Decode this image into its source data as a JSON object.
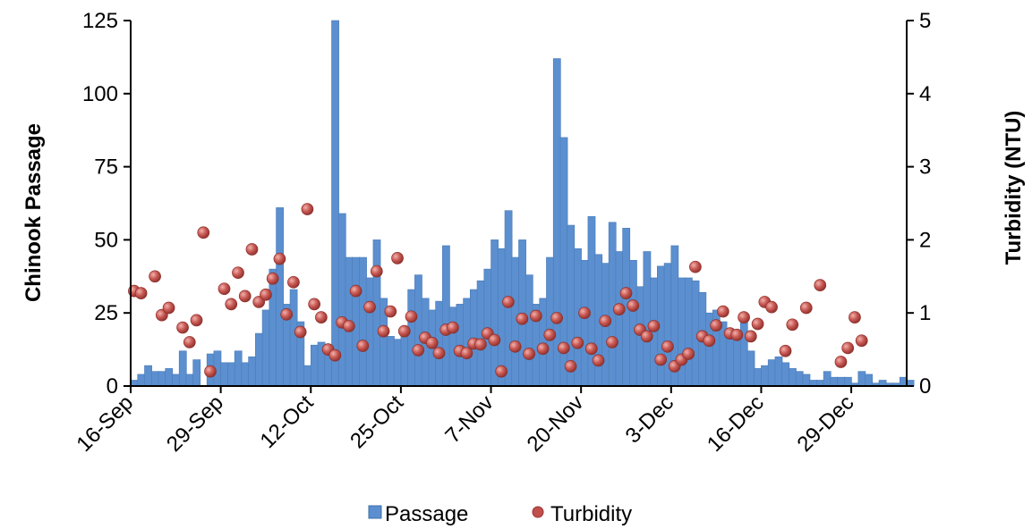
{
  "chart_data": {
    "type": "bar",
    "title": "",
    "xlabel": "",
    "ylabel": "Chinook Passage",
    "y2label": "Turbidity (NTU)",
    "ylim": [
      0,
      125
    ],
    "y2lim": [
      0,
      5
    ],
    "yticks": [
      "0",
      "25",
      "50",
      "75",
      "100",
      "125"
    ],
    "y2ticks": [
      "0",
      "1",
      "2",
      "3",
      "4",
      "5"
    ],
    "x_tick_labels": [
      "16-Sep",
      "29-Sep",
      "12-Oct",
      "25-Oct",
      "7-Nov",
      "20-Nov",
      "3-Dec",
      "16-Dec",
      "29-Dec"
    ],
    "grid": false,
    "legend_position": "bottom",
    "colors": {
      "passage": "#5b8fcf",
      "turbidity": "#c0504d"
    },
    "series": [
      {
        "name": "Passage",
        "type": "bar",
        "axis": "left",
        "x_start": "16-Sep",
        "values": [
          2,
          4,
          7,
          5,
          5,
          6,
          4,
          12,
          4,
          9,
          0,
          11,
          12,
          8,
          8,
          12,
          8,
          10,
          18,
          26,
          40,
          61,
          28,
          33,
          22,
          7,
          14,
          15,
          14,
          125,
          59,
          44,
          44,
          44,
          37,
          50,
          30,
          17,
          16,
          19,
          33,
          38,
          30,
          26,
          29,
          48,
          27,
          28,
          30,
          33,
          36,
          40,
          50,
          47,
          60,
          44,
          50,
          38,
          28,
          30,
          44,
          112,
          85,
          55,
          47,
          43,
          58,
          45,
          42,
          56,
          46,
          54,
          43,
          34,
          46,
          37,
          41,
          42,
          48,
          37,
          37,
          36,
          32,
          25,
          26,
          22,
          18,
          17,
          22,
          12,
          6,
          7,
          9,
          10,
          8,
          6,
          5,
          4,
          2,
          2,
          5,
          3,
          3,
          3,
          1,
          5,
          4,
          1,
          2,
          1,
          1,
          3,
          2
        ]
      },
      {
        "name": "Turbidity",
        "type": "scatter",
        "axis": "right",
        "points": [
          [
            "16-Sep",
            1.3
          ],
          [
            "17-Sep",
            1.27
          ],
          [
            "19-Sep",
            1.5
          ],
          [
            "20-Sep",
            0.97
          ],
          [
            "21-Sep",
            1.07
          ],
          [
            "23-Sep",
            0.8
          ],
          [
            "24-Sep",
            0.6
          ],
          [
            "25-Sep",
            0.9
          ],
          [
            "26-Sep",
            2.1
          ],
          [
            "27-Sep",
            0.2
          ],
          [
            "29-Sep",
            1.33
          ],
          [
            "30-Sep",
            1.12
          ],
          [
            "1-Oct",
            1.55
          ],
          [
            "2-Oct",
            1.23
          ],
          [
            "3-Oct",
            1.87
          ],
          [
            "4-Oct",
            1.15
          ],
          [
            "5-Oct",
            1.25
          ],
          [
            "6-Oct",
            1.47
          ],
          [
            "7-Oct",
            1.74
          ],
          [
            "8-Oct",
            0.98
          ],
          [
            "9-Oct",
            1.42
          ],
          [
            "10-Oct",
            0.74
          ],
          [
            "11-Oct",
            2.42
          ],
          [
            "12-Oct",
            1.12
          ],
          [
            "13-Oct",
            0.94
          ],
          [
            "14-Oct",
            0.5
          ],
          [
            "15-Oct",
            0.42
          ],
          [
            "16-Oct",
            0.87
          ],
          [
            "17-Oct",
            0.82
          ],
          [
            "18-Oct",
            1.3
          ],
          [
            "19-Oct",
            0.55
          ],
          [
            "20-Oct",
            1.08
          ],
          [
            "21-Oct",
            1.57
          ],
          [
            "22-Oct",
            0.75
          ],
          [
            "23-Oct",
            1.02
          ],
          [
            "24-Oct",
            1.75
          ],
          [
            "25-Oct",
            0.75
          ],
          [
            "26-Oct",
            0.95
          ],
          [
            "27-Oct",
            0.49
          ],
          [
            "28-Oct",
            0.66
          ],
          [
            "29-Oct",
            0.59
          ],
          [
            "30-Oct",
            0.45
          ],
          [
            "31-Oct",
            0.77
          ],
          [
            "1-Nov",
            0.8
          ],
          [
            "2-Nov",
            0.48
          ],
          [
            "3-Nov",
            0.45
          ],
          [
            "4-Nov",
            0.58
          ],
          [
            "5-Nov",
            0.57
          ],
          [
            "6-Nov",
            0.72
          ],
          [
            "7-Nov",
            0.63
          ],
          [
            "8-Nov",
            0.2
          ],
          [
            "9-Nov",
            1.15
          ],
          [
            "10-Nov",
            0.54
          ],
          [
            "11-Nov",
            0.92
          ],
          [
            "12-Nov",
            0.44
          ],
          [
            "13-Nov",
            0.96
          ],
          [
            "14-Nov",
            0.51
          ],
          [
            "15-Nov",
            0.7
          ],
          [
            "16-Nov",
            0.93
          ],
          [
            "17-Nov",
            0.52
          ],
          [
            "18-Nov",
            0.27
          ],
          [
            "19-Nov",
            0.59
          ],
          [
            "20-Nov",
            1.0
          ],
          [
            "21-Nov",
            0.51
          ],
          [
            "22-Nov",
            0.35
          ],
          [
            "23-Nov",
            0.89
          ],
          [
            "24-Nov",
            0.6
          ],
          [
            "25-Nov",
            1.05
          ],
          [
            "26-Nov",
            1.27
          ],
          [
            "27-Nov",
            1.1
          ],
          [
            "28-Nov",
            0.77
          ],
          [
            "29-Nov",
            0.68
          ],
          [
            "30-Nov",
            0.82
          ],
          [
            "1-Dec",
            0.36
          ],
          [
            "2-Dec",
            0.54
          ],
          [
            "3-Dec",
            0.27
          ],
          [
            "4-Dec",
            0.36
          ],
          [
            "5-Dec",
            0.44
          ],
          [
            "6-Dec",
            1.63
          ],
          [
            "7-Dec",
            0.68
          ],
          [
            "8-Dec",
            0.62
          ],
          [
            "9-Dec",
            0.83
          ],
          [
            "10-Dec",
            1.02
          ],
          [
            "11-Dec",
            0.72
          ],
          [
            "12-Dec",
            0.7
          ],
          [
            "13-Dec",
            0.94
          ],
          [
            "14-Dec",
            0.68
          ],
          [
            "15-Dec",
            0.85
          ],
          [
            "16-Dec",
            1.15
          ],
          [
            "17-Dec",
            1.08
          ],
          [
            "19-Dec",
            0.48
          ],
          [
            "20-Dec",
            0.84
          ],
          [
            "22-Dec",
            1.07
          ],
          [
            "24-Dec",
            1.38
          ],
          [
            "27-Dec",
            0.33
          ],
          [
            "28-Dec",
            0.52
          ],
          [
            "29-Dec",
            0.94
          ],
          [
            "30-Dec",
            0.62
          ]
        ]
      }
    ]
  }
}
